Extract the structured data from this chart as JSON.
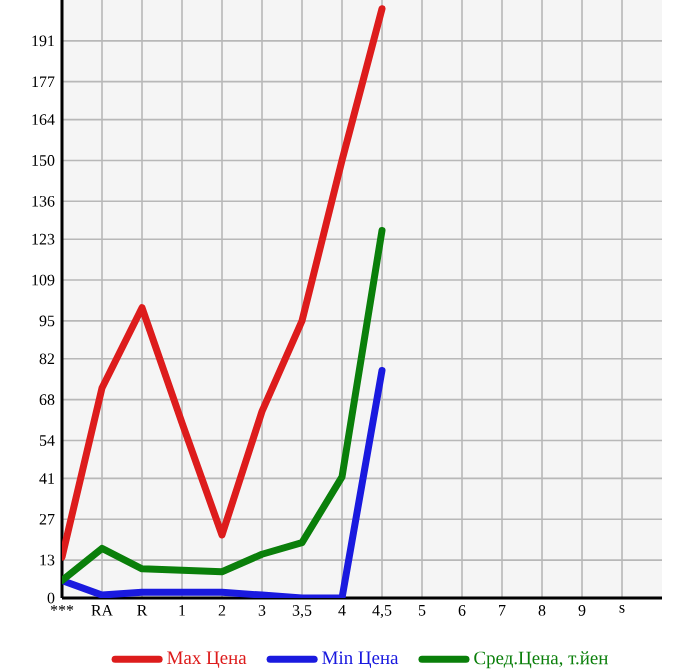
{
  "chart_data": {
    "type": "line",
    "categories": [
      "***",
      "RA",
      "R",
      "1",
      "2",
      "3",
      "3,5",
      "4",
      "4,5",
      "5",
      "6",
      "7",
      "8",
      "9",
      "s"
    ],
    "ylim": [
      0,
      205
    ],
    "yticks": [
      0,
      13,
      27,
      41,
      54,
      68,
      82,
      95,
      109,
      123,
      136,
      150,
      164,
      177,
      191
    ],
    "series": [
      {
        "name": "Max Цена",
        "color": "#dd1c1c",
        "values": [
          14,
          72,
          99.5,
          60,
          21.6,
          64,
          95,
          150,
          202,
          null,
          null,
          null,
          null,
          null,
          null
        ]
      },
      {
        "name": "Min Цена",
        "color": "#1a1adf",
        "values": [
          6,
          1,
          2,
          2,
          2,
          1,
          0,
          0,
          78,
          null,
          null,
          null,
          null,
          null,
          null
        ]
      },
      {
        "name": "Сред.Цена, т.йен",
        "color": "#0a7f0a",
        "values": [
          6,
          17,
          10,
          9.5,
          9,
          15,
          19,
          41.5,
          126,
          null,
          null,
          null,
          null,
          null,
          null
        ]
      }
    ],
    "grid": true,
    "legend": "bottom",
    "marker": "none",
    "line_style": "solid"
  }
}
